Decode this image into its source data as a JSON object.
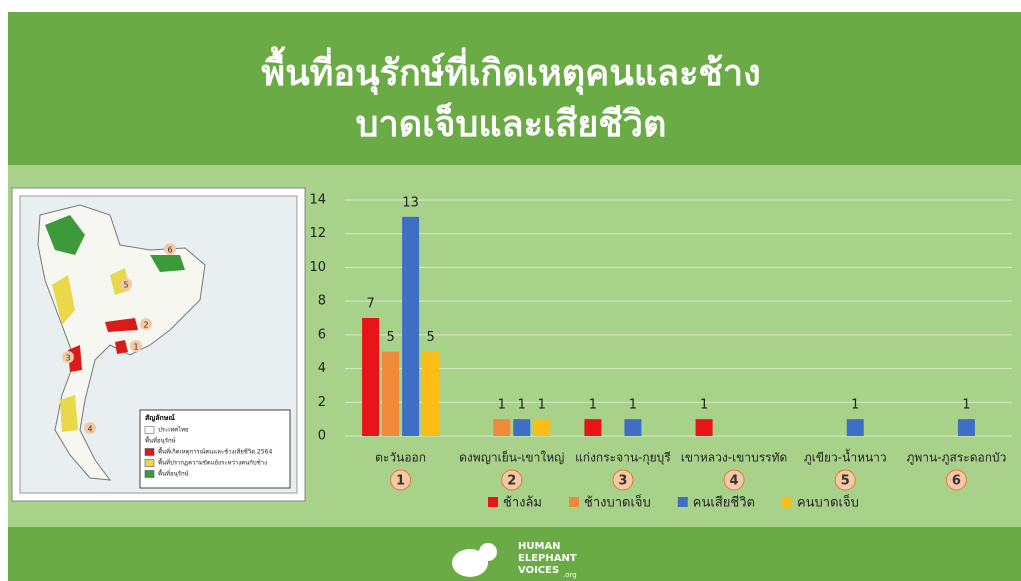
{
  "chart_data": {
    "type": "bar",
    "title_lines": [
      "พื้นที่อนุรักษ์ที่เกิดเหตุคนและช้าง",
      "บาดเจ็บและเสียชีวิต"
    ],
    "categories": [
      "ตะวันออก",
      "ดงพญาเย็น-เขาใหญ่",
      "แก่งกระจาน-กุยบุรี",
      "เขาหลวง-เขาบรรทัด",
      "ภูเขียว-น้ำหนาว",
      "ภูพาน-ภูสระดอกบัว"
    ],
    "category_badges": [
      "1",
      "2",
      "3",
      "4",
      "5",
      "6"
    ],
    "series": [
      {
        "name": "ช้างล้ม",
        "color": "#e8141a",
        "values": [
          7,
          null,
          1,
          1,
          null,
          null
        ]
      },
      {
        "name": "ช้างบาดเจ็บ",
        "color": "#ef8a3a",
        "values": [
          5,
          1,
          null,
          null,
          null,
          null
        ]
      },
      {
        "name": "คนเสียชีวิต",
        "color": "#3e6fc4",
        "values": [
          13,
          1,
          1,
          null,
          1,
          1
        ]
      },
      {
        "name": "คนบาดเจ็บ",
        "color": "#fbbd16",
        "values": [
          5,
          1,
          null,
          null,
          null,
          null
        ]
      }
    ],
    "ylim": [
      0,
      14
    ],
    "yticks": [
      0,
      2,
      4,
      6,
      8,
      10,
      12,
      14
    ],
    "grid": true
  },
  "map": {
    "legend_title": "สัญลักษณ์",
    "legend_items": [
      "ประเทศไทย",
      "พื้นที่อนุรักษ์",
      "พื้นที่เกิดเหตุการณ์คนและช้างเสียชีวิต 2564",
      "พื้นที่ปรากฏความขัดแย้งระหว่างคนกับช้าง",
      "พื้นที่อนุรักษ์"
    ],
    "markers": [
      "1",
      "2",
      "3",
      "4",
      "5",
      "6"
    ]
  },
  "footer": {
    "logo_lines": [
      "HUMAN",
      "ELEPHANT",
      "VOICES"
    ],
    "logo_suffix": ".org"
  }
}
